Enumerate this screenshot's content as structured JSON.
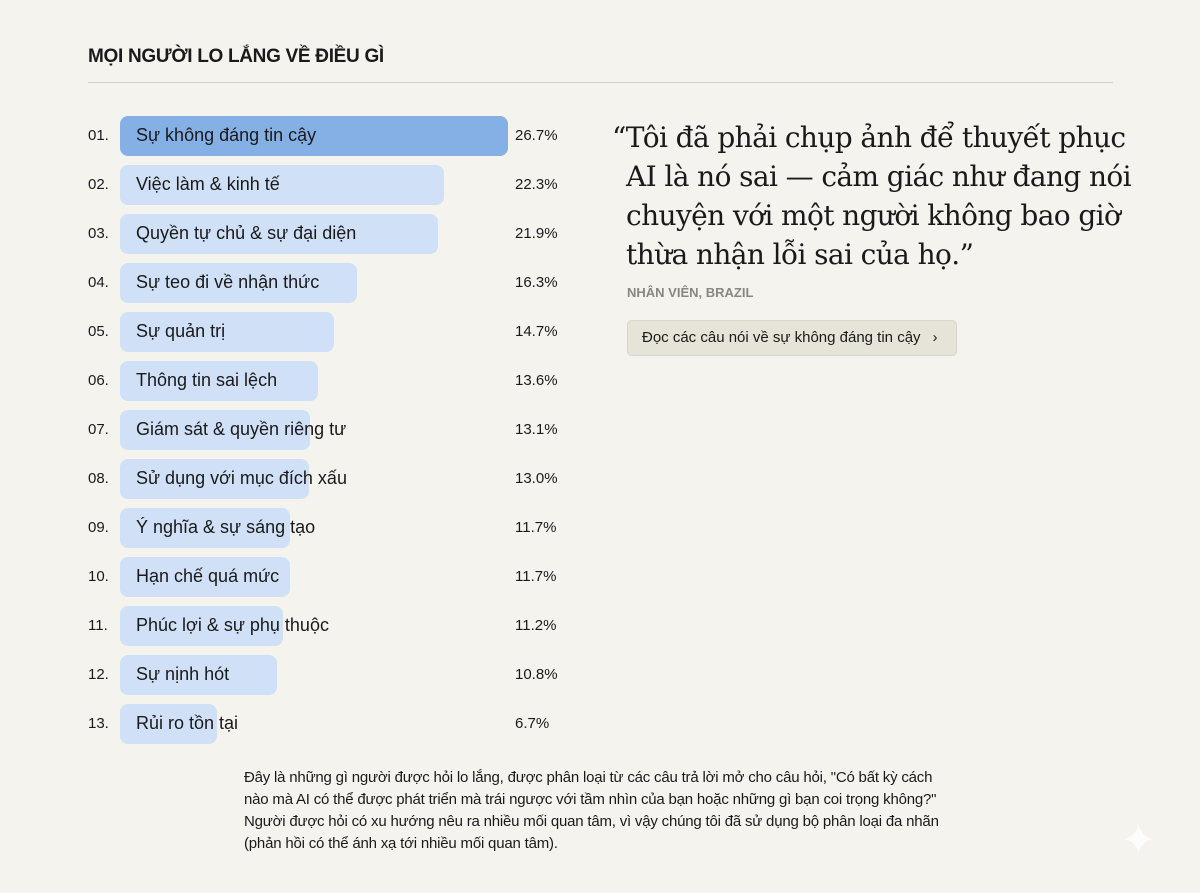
{
  "chart_data": {
    "type": "bar",
    "title": "MỌI NGƯỜI LO LẮNG VỀ ĐIỀU GÌ",
    "orientation": "horizontal",
    "ranks": [
      "01.",
      "02.",
      "03.",
      "04.",
      "05.",
      "06.",
      "07.",
      "08.",
      "09.",
      "10.",
      "11.",
      "12.",
      "13."
    ],
    "categories": [
      "Sự không đáng tin cậy",
      "Việc làm & kinh tế",
      "Quyền tự chủ & sự đại diện",
      "Sự teo đi về nhận thức",
      "Sự quản trị",
      "Thông tin sai lệch",
      "Giám sát & quyền riêng tư",
      "Sử dụng với mục đích xấu",
      "Ý nghĩa & sự sáng tạo",
      "Hạn chế quá mức",
      "Phúc lợi & sự phụ thuộc",
      "Sự nịnh hót",
      "Rủi ro tồn tại"
    ],
    "values": [
      26.7,
      22.3,
      21.9,
      16.3,
      14.7,
      13.6,
      13.1,
      13.0,
      11.7,
      11.7,
      11.2,
      10.8,
      6.7
    ],
    "labels": [
      "26.7%",
      "22.3%",
      "21.9%",
      "16.3%",
      "14.7%",
      "13.6%",
      "13.1%",
      "13.0%",
      "11.7%",
      "11.7%",
      "11.2%",
      "10.8%",
      "6.7%"
    ],
    "highlight_color": "#85b0e6",
    "bar_color": "#cfe0f7"
  },
  "quote": {
    "text": "“Tôi đã phải chụp ảnh để thuyết phục AI là nó sai — cảm giác như đang nói chuyện với một người không bao giờ thừa nhận lỗi sai của họ.”",
    "attribution": "NHÂN VIÊN, BRAZIL",
    "button_label": "Đọc các câu nói về sự không đáng tin cậy",
    "button_chevron": "›"
  },
  "note": "Đây là những gì người được hỏi lo lắng, được phân loại từ các câu trả lời mở cho câu hỏi, \"Có bất kỳ cách nào mà AI có thể được phát triển mà trái ngược với tầm nhìn của bạn hoặc những gì bạn coi trọng không?\" Người được hỏi có xu hướng nêu ra nhiều mối quan tâm, vì vậy chúng tôi đã sử dụng bộ phân loại đa nhãn (phản hồi có thể ánh xạ tới nhiều mối quan tâm)."
}
